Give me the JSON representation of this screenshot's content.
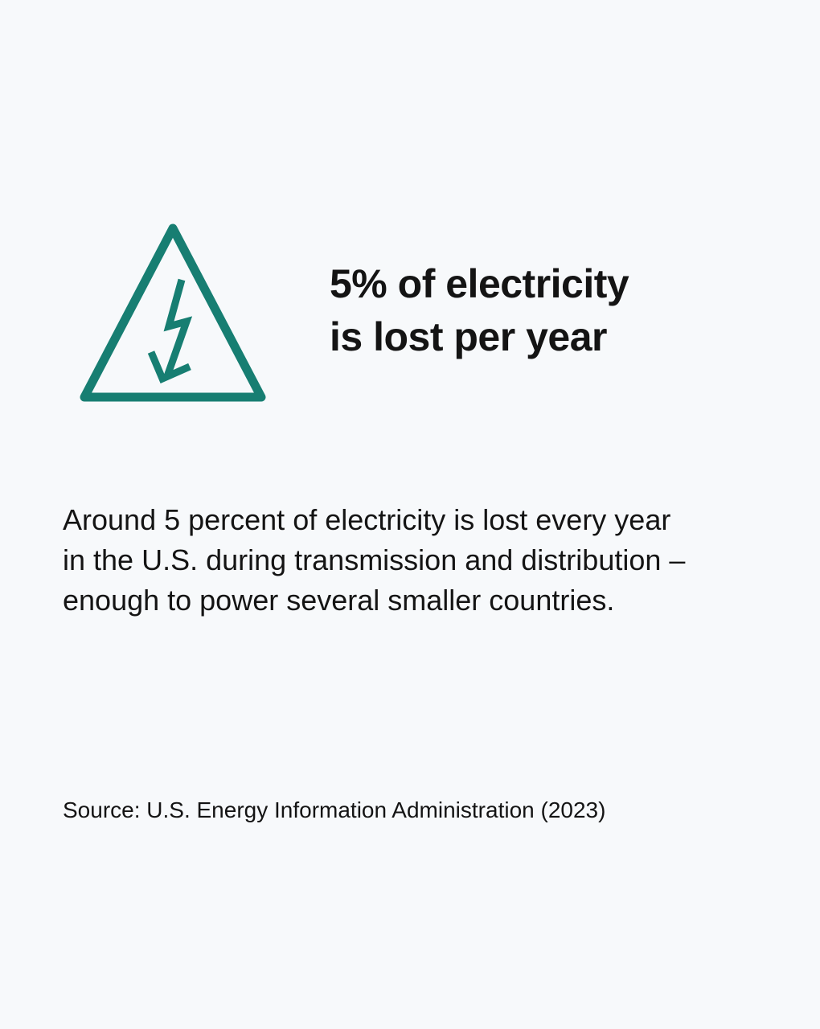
{
  "icon": {
    "name": "high-voltage-warning-icon",
    "color": "#177e72"
  },
  "headline": {
    "line1": "5% of electricity",
    "line2": "is lost per year"
  },
  "body": {
    "line1": "Around 5 percent of electricity is lost every year",
    "line2": "in the U.S. during transmission and distribution –",
    "line3": "enough to power several smaller countries."
  },
  "source": "Source: U.S. Energy Information Administration (2023)"
}
